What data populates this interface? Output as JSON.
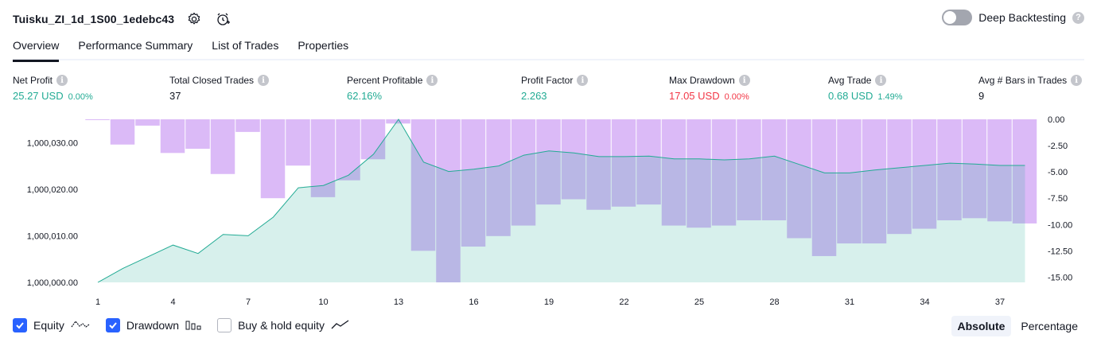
{
  "header": {
    "strategy_title": "Tuisku_ZI_1d_1S00_1edebc43",
    "icons": [
      "gear-icon",
      "alarm-plus-icon"
    ],
    "deep_backtesting_label": "Deep Backtesting",
    "deep_backtesting_enabled": false
  },
  "tabs": [
    {
      "label": "Overview",
      "active": true
    },
    {
      "label": "Performance Summary",
      "active": false
    },
    {
      "label": "List of Trades",
      "active": false
    },
    {
      "label": "Properties",
      "active": false
    }
  ],
  "metrics": {
    "net_profit": {
      "label": "Net Profit",
      "value": "25.27 USD",
      "pct": "0.00%"
    },
    "total_closed_trades": {
      "label": "Total Closed Trades",
      "value": "37"
    },
    "percent_profitable": {
      "label": "Percent Profitable",
      "value": "62.16%"
    },
    "profit_factor": {
      "label": "Profit Factor",
      "value": "2.263"
    },
    "max_drawdown": {
      "label": "Max Drawdown",
      "value": "17.05 USD",
      "pct": "0.00%"
    },
    "avg_trade": {
      "label": "Avg Trade",
      "value": "0.68 USD",
      "pct": "1.49%"
    },
    "avg_bars": {
      "label": "Avg # Bars in Trades",
      "value": "9"
    }
  },
  "colors": {
    "equity_line": "#22ab94",
    "equity_fill": "#d7f0ea",
    "drawdown_fill": "#dbbaf7",
    "positive": "#22ab94",
    "negative": "#f23645",
    "accent": "#2962ff"
  },
  "chart_data": {
    "type": "area",
    "x": [
      1,
      2,
      3,
      4,
      5,
      6,
      7,
      8,
      9,
      10,
      11,
      12,
      13,
      14,
      15,
      16,
      17,
      18,
      19,
      20,
      21,
      22,
      23,
      24,
      25,
      26,
      27,
      28,
      29,
      30,
      31,
      32,
      33,
      34,
      35,
      36,
      37,
      38
    ],
    "x_tick_labels": [
      "1",
      "4",
      "7",
      "10",
      "13",
      "16",
      "19",
      "22",
      "25",
      "28",
      "31",
      "34",
      "37"
    ],
    "left_axis": {
      "ticks": [
        "1,000,000.00",
        "1,000,010.00",
        "1,000,020.00",
        "1,000,030.00"
      ],
      "ylim": [
        1000000,
        1000035
      ]
    },
    "right_axis": {
      "ticks": [
        "0.00",
        "-2.50",
        "-5.00",
        "-7.50",
        "-10.00",
        "-12.50",
        "-15.00"
      ],
      "ylim": [
        -15.5,
        0
      ]
    },
    "series": [
      {
        "name": "Equity",
        "axis": "left",
        "values": [
          1000000.0,
          1000003.0,
          1000005.5,
          1000008.0,
          1000006.2,
          1000010.3,
          1000010.0,
          1000014.0,
          1000020.3,
          1000020.8,
          1000023.0,
          1000027.5,
          1000035.0,
          1000025.8,
          1000023.8,
          1000024.3,
          1000025.0,
          1000027.3,
          1000028.2,
          1000027.8,
          1000027.0,
          1000027.0,
          1000027.1,
          1000026.5,
          1000026.5,
          1000026.3,
          1000026.5,
          1000027.1,
          1000025.3,
          1000023.5,
          1000023.5,
          1000024.1,
          1000024.6,
          1000025.1,
          1000025.6,
          1000025.4,
          1000025.1,
          1000025.1
        ]
      },
      {
        "name": "Drawdown",
        "axis": "right",
        "values": [
          0.0,
          -2.4,
          -0.6,
          -3.2,
          -2.8,
          -5.2,
          -1.2,
          -7.5,
          -4.4,
          -7.4,
          -5.8,
          -3.8,
          -0.4,
          -12.5,
          -15.5,
          -12.1,
          -11.1,
          -10.1,
          -8.1,
          -7.6,
          -8.6,
          -8.3,
          -8.1,
          -10.1,
          -10.3,
          -10.1,
          -9.6,
          -9.6,
          -11.3,
          -13.0,
          -11.8,
          -11.8,
          -10.9,
          -10.4,
          -9.6,
          -9.4,
          -9.7,
          -9.9
        ]
      }
    ]
  },
  "legend": {
    "equity_label": "Equity",
    "equity_checked": true,
    "drawdown_label": "Drawdown",
    "drawdown_checked": true,
    "buyhold_label": "Buy & hold equity",
    "buyhold_checked": false
  },
  "view_mode": {
    "absolute_label": "Absolute",
    "percentage_label": "Percentage",
    "selected": "Absolute"
  }
}
